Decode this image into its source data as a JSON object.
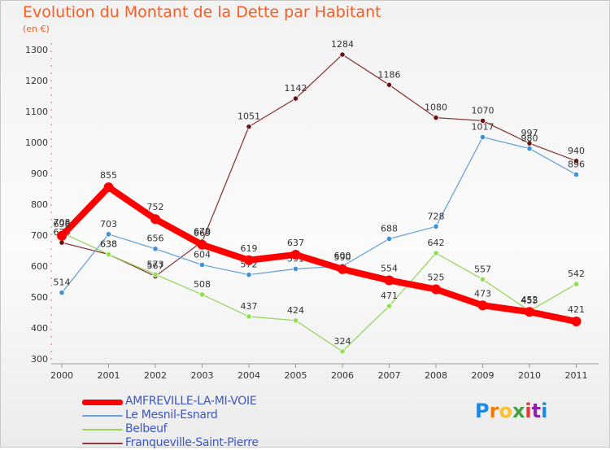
{
  "title": "Evolution du Montant de la Dette par Habitant",
  "unit": "(en €)",
  "logo": {
    "text": "Proxiti",
    "colors": [
      "#1e88e5",
      "#f57c00",
      "#fbc02d",
      "#43a047",
      "#e53935",
      "#8e24aa",
      "#1e88e5"
    ]
  },
  "chart_data": {
    "type": "line",
    "title": "Evolution du Montant de la Dette par Habitant",
    "ylabel": "(en €)",
    "xlabel": "",
    "ylim": [
      300,
      1300
    ],
    "yticks": [
      300,
      400,
      500,
      600,
      700,
      800,
      900,
      1000,
      1100,
      1200,
      1300
    ],
    "x": [
      "2000",
      "2001",
      "2002",
      "2003",
      "2004",
      "2005",
      "2006",
      "2007",
      "2008",
      "2009",
      "2010",
      "2011"
    ],
    "grid": false,
    "legend_position": "bottom-left",
    "series": [
      {
        "name": "AMFREVILLE-LA-MI-VOIE",
        "color": "#ff0000",
        "values": [
          698,
          855,
          752,
          669,
          619,
          637,
          590,
          554,
          525,
          473,
          452,
          421
        ]
      },
      {
        "name": "Le Mesnil-Esnard",
        "color": "#6aa3d9",
        "values": [
          514,
          703,
          656,
          604,
          572,
          591,
          600,
          688,
          728,
          1017,
          980,
          896
        ]
      },
      {
        "name": "Belbeuf",
        "color": "#99d65e",
        "values": [
          708,
          638,
          573,
          508,
          437,
          424,
          324,
          471,
          642,
          557,
          455,
          542
        ]
      },
      {
        "name": "Franqueville-Saint-Pierre",
        "color": "#8b3a3a",
        "values": [
          676,
          638,
          567,
          679,
          1051,
          1142,
          1284,
          1186,
          1080,
          1070,
          997,
          940
        ]
      }
    ]
  }
}
